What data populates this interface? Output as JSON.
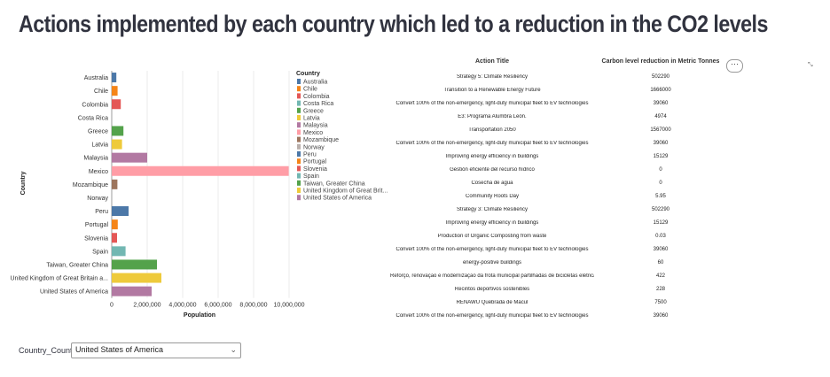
{
  "title": "Actions implemented by each country which led to a reduction in the CO2 levels",
  "chart_data": {
    "type": "bar",
    "orientation": "horizontal",
    "categories": [
      "Australia",
      "Chile",
      "Colombia",
      "Costa Rica",
      "Greece",
      "Latvia",
      "Malaysia",
      "Mexico",
      "Mozambique",
      "Norway",
      "Peru",
      "Portugal",
      "Slovenia",
      "Spain",
      "Taiwan, Greater China",
      "United Kingdom of Great Britain a...",
      "United States of America"
    ],
    "values": [
      260000,
      330000,
      510000,
      0,
      660000,
      580000,
      2000000,
      9980000,
      320000,
      0,
      950000,
      340000,
      300000,
      780000,
      2550000,
      2800000,
      2250000
    ],
    "colors": [
      "#4c78a8",
      "#f58518",
      "#e45756",
      "#72b7b2",
      "#54a24b",
      "#eeca3b",
      "#b279a2",
      "#ff9da6",
      "#9d755d",
      "#bab0ac",
      "#4c78a8",
      "#f58518",
      "#e45756",
      "#72b7b2",
      "#54a24b",
      "#eeca3b",
      "#b279a2"
    ],
    "xlabel": "Population",
    "ylabel": "Country",
    "xlim": [
      0,
      10000000
    ],
    "xticks": [
      0,
      2000000,
      4000000,
      6000000,
      8000000,
      10000000
    ],
    "xtick_labels": [
      "0",
      "2,000,000",
      "4,000,000",
      "6,000,000",
      "8,000,000",
      "10,000,000"
    ],
    "grid": true,
    "legend": {
      "title": "Country",
      "placement": "right",
      "entries": [
        "Australia",
        "Chile",
        "Colombia",
        "Costa Rica",
        "Greece",
        "Latvia",
        "Malaysia",
        "Mexico",
        "Mozambique",
        "Norway",
        "Peru",
        "Portugal",
        "Slovenia",
        "Spain",
        "Taiwan, Greater China",
        "United Kingdom of Great Brit...",
        "United States of America"
      ]
    }
  },
  "table": {
    "headers": {
      "action": "Action Title",
      "carbon": "Carbon level reduction in Metric Tonnes"
    },
    "rows": [
      {
        "action": "Strategy 5: Climate Resiliency",
        "carbon": "502290"
      },
      {
        "action": "Transition to a Renewable Energy Future",
        "carbon": "1666000"
      },
      {
        "action": "Convert 100% of the non-emergency, light-duty municipal fleet to EV technologies",
        "carbon": "39060"
      },
      {
        "action": "E3: Programa Alumbra León.",
        "carbon": "4974"
      },
      {
        "action": "Transportation 2050",
        "carbon": "1567000"
      },
      {
        "action": "Convert 100% of the non-emergency, light-duty municipal fleet to EV technologies",
        "carbon": "39060"
      },
      {
        "action": "Improving energy efficiency in buildings",
        "carbon": "15129"
      },
      {
        "action": "Gestión eficiente del recurso hídrico",
        "carbon": "0"
      },
      {
        "action": "Cosecha de agua",
        "carbon": "0"
      },
      {
        "action": "Community Roots Day",
        "carbon": "5.95"
      },
      {
        "action": "Strategy 3: Climate Resiliency",
        "carbon": "502290"
      },
      {
        "action": "Improving energy efficiency in buildings",
        "carbon": "15129"
      },
      {
        "action": "Production of Organic Composting from waste",
        "carbon": "0.03"
      },
      {
        "action": "Convert 100% of the non-emergency, light-duty municipal fleet to EV technologies",
        "carbon": "39060"
      },
      {
        "action": "energy-positive buildings",
        "carbon": "60"
      },
      {
        "action": "Reforço, renovação e modernização da frota municipal partilhadas de bicicletas elétricas – BeAgueda",
        "carbon": "422"
      },
      {
        "action": "Recintos deportivos sostenibles",
        "carbon": "228"
      },
      {
        "action": "RENAWU Quebrada de Macul",
        "carbon": "7500"
      },
      {
        "action": "Convert 100% of the non-emergency, light-duty municipal fleet to EV technologies",
        "carbon": "39060"
      }
    ]
  },
  "toolbar": {
    "menu_label": "···",
    "expand_label": "⤡"
  },
  "filter": {
    "label": "Country_Country",
    "selected": "United States of America",
    "chevron": "⌄"
  }
}
